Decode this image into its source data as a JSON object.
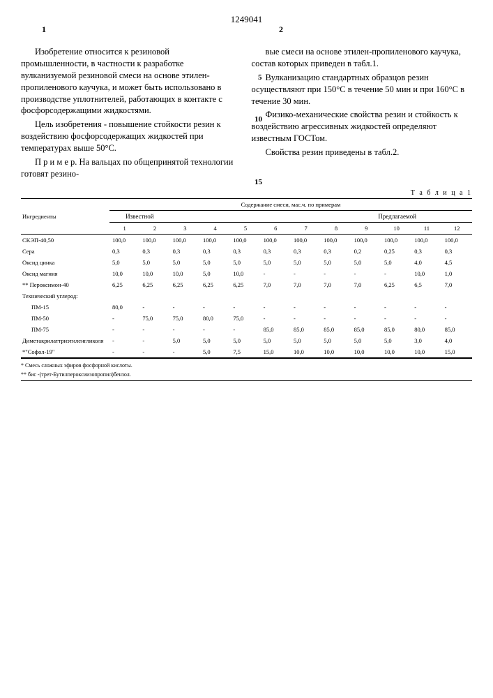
{
  "patent_number": "1249041",
  "col_left_num": "1",
  "col_right_num": "2",
  "margin_nums": {
    "n5": "5",
    "n10": "10",
    "n15": "15"
  },
  "left_col": {
    "p1": "Изобретение относится к резиновой промышленности, в частности к разработке вулканизуемой резиновой смеси на основе этилен-пропиленового каучука, и может быть использовано в производстве уплотнителей, работающих в контакте с фосфорсодержащими жидкостями.",
    "p2": "Цель изобретения - повышение стойкости резин к воздействию фосфорсодержащих жидкостей при температурах выше 50°С.",
    "p3": "П р и м е р. На вальцах по общепринятой технологии готовят резино-"
  },
  "right_col": {
    "p1": "вые смеси на основе этилен-пропиленового каучука, состав которых приведен в табл.1.",
    "p2": "Вулканизацию стандартных образцов резин осуществляют при 150°С в течение 50 мин и при 160°С в течение 30 мин.",
    "p3": "Физико-механические свойства резин и стойкость к воздействию агрессивных жидкостей определяют известным ГОСТом.",
    "p4": "Свойства резин приведены в табл.2."
  },
  "table": {
    "label": "Т а б л и ц а 1",
    "header_ingredient": "Ингредиенты",
    "header_content": "Содержание смеси, мас.ч. по примерам",
    "group_known": "Известной",
    "group_proposed": "Предлагаемой",
    "col_nums": [
      "1",
      "2",
      "3",
      "4",
      "5",
      "6",
      "7",
      "8",
      "9",
      "10",
      "11",
      "12"
    ],
    "rows": [
      {
        "name": "СКЭП-40,50",
        "v": [
          "100,0",
          "100,0",
          "100,0",
          "100,0",
          "100,0",
          "100,0",
          "100,0",
          "100,0",
          "100,0",
          "100,0",
          "100,0",
          "100,0"
        ]
      },
      {
        "name": "Сера",
        "v": [
          "0,3",
          "0,3",
          "0,3",
          "0,3",
          "0,3",
          "0,3",
          "0,3",
          "0,3",
          "0,2",
          "0,25",
          "0,3",
          "0,3"
        ]
      },
      {
        "name": "Оксид цинка",
        "v": [
          "5,0",
          "5,0",
          "5,0",
          "5,0",
          "5,0",
          "5,0",
          "5,0",
          "5,0",
          "5,0",
          "5,0",
          "4,0",
          "4,5"
        ]
      },
      {
        "name": "Оксид магния",
        "v": [
          "10,0",
          "10,0",
          "10,0",
          "5,0",
          "10,0",
          "-",
          "-",
          "-",
          "-",
          "-",
          "10,0",
          "1,0"
        ]
      },
      {
        "name": "** Пероксимон-40",
        "v": [
          "6,25",
          "6,25",
          "6,25",
          "6,25",
          "6,25",
          "7,0",
          "7,0",
          "7,0",
          "7,0",
          "6,25",
          "6,5",
          "7,0"
        ]
      },
      {
        "name": "Технический углерод:",
        "v": [
          "",
          "",
          "",
          "",
          "",
          "",
          "",
          "",
          "",
          "",
          "",
          ""
        ]
      },
      {
        "name": "ПМ-15",
        "indent": true,
        "v": [
          "80,0",
          "-",
          "-",
          "-",
          "-",
          "-",
          "-",
          "-",
          "-",
          "-",
          "-",
          "-"
        ]
      },
      {
        "name": "ПМ-50",
        "indent": true,
        "v": [
          "-",
          "75,0",
          "75,0",
          "80,0",
          "75,0",
          "-",
          "-",
          "-",
          "-",
          "-",
          "-",
          "-"
        ]
      },
      {
        "name": "ПМ-75",
        "indent": true,
        "v": [
          "-",
          "-",
          "-",
          "-",
          "-",
          "85,0",
          "85,0",
          "85,0",
          "85,0",
          "85,0",
          "80,0",
          "85,0"
        ]
      },
      {
        "name": "Диметакрилаттриэтиленгликоля",
        "v": [
          "-",
          "-",
          "5,0",
          "5,0",
          "5,0",
          "5,0",
          "5,0",
          "5,0",
          "5,0",
          "5,0",
          "3,0",
          "4,0"
        ]
      },
      {
        "name": "*\"Софол-19\"",
        "v": [
          "-",
          "-",
          "-",
          "5,0",
          "7,5",
          "15,0",
          "10,0",
          "10,0",
          "10,0",
          "10,0",
          "10,0",
          "15,0"
        ]
      }
    ]
  },
  "footnotes": {
    "f1": "* Смесь сложных эфиров фосфорной кислоты.",
    "f2": "** бис -(трет-Бутилпероксиизопропил)бензол."
  }
}
